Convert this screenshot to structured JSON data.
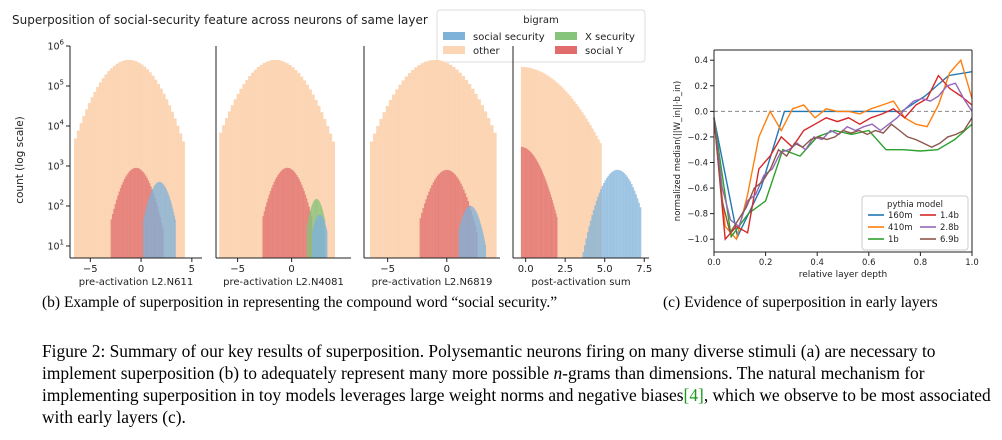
{
  "panel_b": {
    "title": "Superposition of social-security feature across neurons of same layer",
    "ylabel": "count (log scale)",
    "caption": "(b) Example of superposition in representing the compound word “social security.”",
    "legend": {
      "title": "bigram",
      "entries": [
        {
          "label": "social security",
          "color": "#7eb2d9"
        },
        {
          "label": "X security",
          "color": "#86c47c"
        },
        {
          "label": "other",
          "color": "#fcd5b4"
        },
        {
          "label": "social Y",
          "color": "#e06c6c"
        }
      ]
    }
  },
  "panel_c": {
    "caption": "(c) Evidence of superposition in early layers"
  },
  "figure_caption": {
    "prefix": "Figure 2: Summary of our key results of superposition. Polysemantic neurons firing on many diverse stimuli (a) are necessary to implement superposition (b) to adequately represent many more possible ",
    "math": "n",
    "middle": "-grams than dimensions. The natural mechanism for implementing superposition in toy models leverages large weight norms and negative biases",
    "ref": "[4]",
    "suffix": ", which we observe to be most associated with early layers (c)."
  },
  "chart_data": [
    {
      "type": "bar",
      "subtype": "histogram",
      "xlabel": "pre-activation L2.N611",
      "ylabel": "count (log scale)",
      "yscale": "log",
      "ylim": [
        5,
        1000000
      ],
      "xlim": [
        -7,
        6
      ],
      "xticks": [
        -5,
        0,
        5
      ],
      "yticks": [
        10,
        100,
        1000,
        10000,
        100000,
        1000000
      ],
      "series": [
        {
          "name": "other",
          "color": "#fcd5b4",
          "dist": {
            "mu": -1.2,
            "sigma": 1.75,
            "peak": 450000,
            "lo": -6.6,
            "hi": 4.3
          }
        },
        {
          "name": "social Y",
          "color": "#e06c6c",
          "dist": {
            "mu": -0.5,
            "sigma": 1.0,
            "peak": 900,
            "lo": -3.0,
            "hi": 2.2
          }
        },
        {
          "name": "social security",
          "color": "#7eb2d9",
          "dist": {
            "mu": 1.8,
            "sigma": 0.75,
            "peak": 400,
            "lo": 0.2,
            "hi": 3.4
          }
        }
      ]
    },
    {
      "type": "bar",
      "subtype": "histogram",
      "xlabel": "pre-activation L2.N4081",
      "yscale": "log",
      "ylim": [
        5,
        1000000
      ],
      "xlim": [
        -7,
        5.5
      ],
      "xticks": [
        -5,
        0
      ],
      "series": [
        {
          "name": "other",
          "color": "#fcd5b4",
          "dist": {
            "mu": -1.5,
            "sigma": 1.75,
            "peak": 450000,
            "lo": -6.7,
            "hi": 4.0
          }
        },
        {
          "name": "social Y",
          "color": "#e06c6c",
          "dist": {
            "mu": -0.4,
            "sigma": 0.95,
            "peak": 900,
            "lo": -2.7,
            "hi": 1.9
          }
        },
        {
          "name": "X security",
          "color": "#86c47c",
          "dist": {
            "mu": 2.3,
            "sigma": 0.5,
            "peak": 150,
            "lo": 1.4,
            "hi": 3.1
          }
        },
        {
          "name": "social security",
          "color": "#7eb2d9",
          "dist": {
            "mu": 2.6,
            "sigma": 0.5,
            "peak": 60,
            "lo": 1.9,
            "hi": 3.3
          }
        }
      ]
    },
    {
      "type": "bar",
      "subtype": "histogram",
      "xlabel": "pre-activation L2.N6819",
      "yscale": "log",
      "ylim": [
        5,
        1000000
      ],
      "xlim": [
        -7,
        4.5
      ],
      "xticks": [
        -5,
        0
      ],
      "series": [
        {
          "name": "other",
          "color": "#fcd5b4",
          "dist": {
            "mu": -1.0,
            "sigma": 1.75,
            "peak": 450000,
            "lo": -6.5,
            "hi": 4.2
          }
        },
        {
          "name": "social Y",
          "color": "#e06c6c",
          "dist": {
            "mu": 0.0,
            "sigma": 0.95,
            "peak": 800,
            "lo": -2.3,
            "hi": 2.6
          }
        },
        {
          "name": "social security",
          "color": "#7eb2d9",
          "dist": {
            "mu": 2.0,
            "sigma": 0.6,
            "peak": 100,
            "lo": 1.0,
            "hi": 3.3
          }
        }
      ]
    },
    {
      "type": "bar",
      "subtype": "histogram",
      "xlabel": "post-activation sum",
      "yscale": "log",
      "ylim": [
        5,
        1000000
      ],
      "xlim": [
        -0.8,
        7.8
      ],
      "xticks": [
        0,
        2.5,
        5,
        7.5
      ],
      "xticklabels": [
        "0.0",
        "2.5",
        "5.0",
        "7.5"
      ],
      "series": [
        {
          "name": "other",
          "color": "#fcd5b4",
          "dist": {
            "mu": -0.3,
            "sigma": 1.7,
            "peak": 300000,
            "lo": -0.3,
            "hi": 4.8,
            "half": true
          }
        },
        {
          "name": "social Y",
          "color": "#e06c6c",
          "dist": {
            "mu": -0.3,
            "sigma": 0.8,
            "peak": 3000,
            "lo": -0.3,
            "hi": 2.0,
            "half": true
          }
        },
        {
          "name": "social security",
          "color": "#7eb2d9",
          "dist": {
            "mu": 5.8,
            "sigma": 0.7,
            "peak": 800,
            "lo": 3.6,
            "hi": 7.3
          }
        }
      ]
    },
    {
      "type": "line",
      "xlabel": "relative layer depth",
      "ylabel": "normalized median(||W_in||·b_in)",
      "xlim": [
        0,
        1
      ],
      "ylim": [
        -1.1,
        0.48
      ],
      "xticks": [
        0,
        0.2,
        0.4,
        0.6,
        0.8,
        1.0
      ],
      "xticklabels": [
        "0.0",
        "0.2",
        "0.4",
        "0.6",
        "0.8",
        "1.0"
      ],
      "yticks": [
        -1.0,
        -0.8,
        -0.6,
        -0.4,
        -0.2,
        0.0,
        0.2,
        0.4
      ],
      "yticklabels": [
        "−1.0",
        "−0.8",
        "−0.6",
        "−0.4",
        "−0.2",
        "0.0",
        "0.2",
        "0.4"
      ],
      "reference_line": 0,
      "legend": {
        "title": "pythia model",
        "placement": "lower-right"
      },
      "series": [
        {
          "name": "160m",
          "color": "#1f77b4",
          "x": [
            0,
            0.0909,
            0.1818,
            0.2727,
            0.3636,
            0.4545,
            0.5455,
            0.6364,
            0.7273,
            0.8182,
            0.9091,
            1.0
          ],
          "y": [
            -0.05,
            -0.98,
            -0.6,
            0.0,
            0.0,
            0.0,
            0.0,
            0.0,
            0.0,
            0.12,
            0.28,
            0.31
          ]
        },
        {
          "name": "410m",
          "color": "#ff7f0e",
          "x": [
            0,
            0.0435,
            0.087,
            0.1304,
            0.1739,
            0.2174,
            0.2609,
            0.3043,
            0.3478,
            0.3913,
            0.4348,
            0.4783,
            0.5217,
            0.5652,
            0.6087,
            0.6522,
            0.6957,
            0.7391,
            0.7826,
            0.8261,
            0.8696,
            0.913,
            0.9565,
            1.0
          ],
          "y": [
            -0.05,
            -0.9,
            -1.0,
            -0.65,
            -0.2,
            0.0,
            -0.15,
            0.02,
            0.05,
            -0.05,
            0.02,
            0.0,
            0.0,
            -0.02,
            0.02,
            0.05,
            0.08,
            -0.05,
            -0.1,
            -0.12,
            0.05,
            0.3,
            0.4,
            0.1
          ]
        },
        {
          "name": "1b",
          "color": "#2ca02c",
          "x": [
            0,
            0.0667,
            0.1333,
            0.2,
            0.2667,
            0.3333,
            0.4,
            0.4667,
            0.5333,
            0.6,
            0.6667,
            0.7333,
            0.8,
            0.8667,
            0.9333,
            1.0
          ],
          "y": [
            -0.05,
            -0.98,
            -0.8,
            -0.7,
            -0.3,
            -0.35,
            -0.2,
            -0.15,
            -0.18,
            -0.15,
            -0.3,
            -0.3,
            -0.31,
            -0.3,
            -0.22,
            -0.1
          ]
        },
        {
          "name": "1.4b",
          "color": "#d62728",
          "x": [
            0,
            0.0435,
            0.087,
            0.1304,
            0.1739,
            0.2174,
            0.2609,
            0.3043,
            0.3478,
            0.3913,
            0.4348,
            0.4783,
            0.5217,
            0.5652,
            0.6087,
            0.6522,
            0.6957,
            0.7391,
            0.7826,
            0.8261,
            0.8696,
            0.913,
            0.9565,
            1.0
          ],
          "y": [
            -0.05,
            -1.0,
            -0.9,
            -0.95,
            -0.45,
            -0.35,
            -0.2,
            -0.28,
            -0.15,
            -0.1,
            -0.05,
            -0.08,
            -0.05,
            -0.1,
            -0.05,
            -0.02,
            0.02,
            -0.05,
            0.05,
            0.1,
            0.28,
            0.18,
            0.12,
            0.05
          ]
        },
        {
          "name": "2.8b",
          "color": "#9467bd",
          "x": [
            0,
            0.0323,
            0.0645,
            0.0968,
            0.129,
            0.1613,
            0.1935,
            0.2258,
            0.2581,
            0.2903,
            0.3226,
            0.3548,
            0.3871,
            0.4194,
            0.4516,
            0.4839,
            0.5161,
            0.5484,
            0.5806,
            0.6129,
            0.6452,
            0.6774,
            0.7097,
            0.7419,
            0.7742,
            0.8065,
            0.8387,
            0.871,
            0.9032,
            0.9355,
            0.9677,
            1.0
          ],
          "y": [
            -0.05,
            -0.6,
            -0.85,
            -0.9,
            -0.7,
            -0.65,
            -0.5,
            -0.45,
            -0.32,
            -0.3,
            -0.25,
            -0.3,
            -0.2,
            -0.22,
            -0.15,
            -0.18,
            -0.12,
            -0.15,
            -0.12,
            -0.1,
            -0.15,
            -0.1,
            -0.05,
            0.02,
            0.08,
            0.1,
            0.08,
            0.12,
            0.2,
            0.22,
            0.1,
            0.0
          ]
        },
        {
          "name": "6.9b",
          "color": "#8c564b",
          "x": [
            0,
            0.0313,
            0.0625,
            0.0938,
            0.125,
            0.1563,
            0.1875,
            0.2188,
            0.25,
            0.2813,
            0.3125,
            0.3438,
            0.375,
            0.4063,
            0.4375,
            0.4688,
            0.5,
            0.5313,
            0.5625,
            0.5938,
            0.625,
            0.6563,
            0.6875,
            0.7188,
            0.75,
            0.7813,
            0.8125,
            0.8438,
            0.875,
            0.9063,
            0.9375,
            0.9688,
            1.0
          ],
          "y": [
            -0.05,
            -0.7,
            -0.95,
            -0.85,
            -0.75,
            -0.6,
            -0.55,
            -0.45,
            -0.3,
            -0.35,
            -0.25,
            -0.28,
            -0.22,
            -0.2,
            -0.22,
            -0.2,
            -0.15,
            -0.17,
            -0.15,
            -0.18,
            -0.15,
            -0.17,
            -0.1,
            -0.15,
            -0.2,
            -0.22,
            -0.25,
            -0.28,
            -0.25,
            -0.2,
            -0.18,
            -0.15,
            -0.05
          ]
        }
      ]
    }
  ]
}
